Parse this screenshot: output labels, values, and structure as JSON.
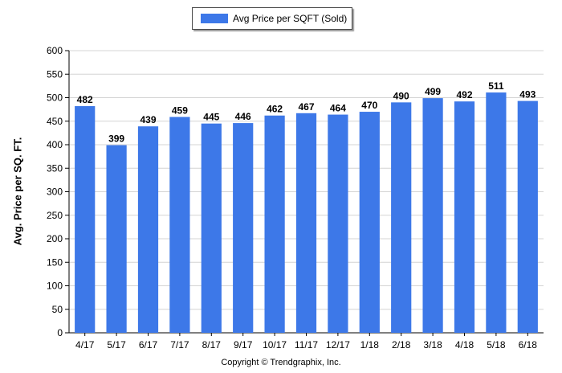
{
  "chart_data": {
    "type": "bar",
    "categories": [
      "4/17",
      "5/17",
      "6/17",
      "7/17",
      "8/17",
      "9/17",
      "10/17",
      "11/17",
      "12/17",
      "1/18",
      "2/18",
      "3/18",
      "4/18",
      "5/18",
      "6/18"
    ],
    "series": [
      {
        "name": "Avg Price per SQFT (Sold)",
        "values": [
          482,
          399,
          439,
          459,
          445,
          446,
          462,
          467,
          464,
          470,
          490,
          499,
          492,
          511,
          493
        ]
      }
    ],
    "ylabel": "Avg. Price per SQ. FT.",
    "xlabel": "",
    "ylim": [
      0,
      600
    ],
    "yticks": [
      0,
      50,
      100,
      150,
      200,
      250,
      300,
      350,
      400,
      450,
      500,
      550,
      600
    ],
    "grid": true,
    "legend_position": "top-center",
    "bar_color": "#3d78e8",
    "data_labels": true
  },
  "footer": {
    "copyright": "Copyright © Trendgraphix, Inc."
  }
}
